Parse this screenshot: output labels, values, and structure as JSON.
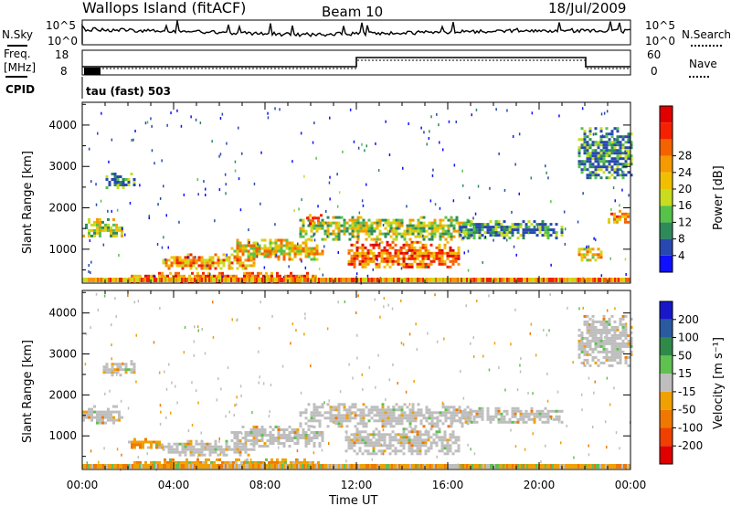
{
  "header": {
    "site": "Wallops Island (fitACF)",
    "beam": "Beam 10",
    "date": "18/Jul/2009"
  },
  "strips": {
    "nsky": {
      "label": "N.Sky",
      "left_ticks": [
        "10^5",
        "10^0"
      ],
      "right_ticks": [
        "10^5",
        "10^0"
      ],
      "right_label": "N.Search"
    },
    "freq": {
      "label_line1": "Freq.",
      "label_line2": "[MHz]",
      "left_ticks": [
        "18",
        "8"
      ],
      "right_ticks": [
        "60",
        "0"
      ],
      "right_label": "Nave"
    },
    "cpid": {
      "label": "CPID",
      "value_text": "tau (fast) 503"
    }
  },
  "chart_data": [
    {
      "type": "heatmap",
      "panel": "power",
      "ylabel": "Slant Range [km]",
      "x_ticks": [
        "00:00",
        "04:00",
        "08:00",
        "12:00",
        "16:00",
        "20:00",
        "00:00"
      ],
      "xlim_hours": [
        0,
        24
      ],
      "y_ticks": [
        1000,
        2000,
        3000,
        4000
      ],
      "ylim": [
        180,
        4550
      ],
      "colorbar": {
        "label": "Power [dB]",
        "ticks": [
          "4",
          "8",
          "12",
          "16",
          "20",
          "24",
          "28"
        ],
        "colors": [
          "#1010ff",
          "#2848b0",
          "#2f8a5a",
          "#56c24a",
          "#c8dc20",
          "#f0c000",
          "#f59a00",
          "#f56200",
          "#f52000",
          "#e00000"
        ]
      },
      "regions": [
        {
          "t": [
            0.0,
            1.7
          ],
          "r": [
            1300,
            1750
          ],
          "level": 5
        },
        {
          "t": [
            0.9,
            2.3
          ],
          "r": [
            2500,
            2850
          ],
          "level": 3
        },
        {
          "t": [
            2.0,
            10.5
          ],
          "r": [
            250,
            450
          ],
          "level": 8
        },
        {
          "t": [
            3.5,
            7.5
          ],
          "r": [
            550,
            900
          ],
          "level": 7
        },
        {
          "t": [
            6.5,
            10.5
          ],
          "r": [
            750,
            1250
          ],
          "level": 6
        },
        {
          "t": [
            9.5,
            17.0
          ],
          "r": [
            1250,
            1800
          ],
          "level": 5
        },
        {
          "t": [
            11.5,
            16.5
          ],
          "r": [
            550,
            1200
          ],
          "level": 8
        },
        {
          "t": [
            9.8,
            10.6
          ],
          "r": [
            1600,
            1850
          ],
          "level": 8
        },
        {
          "t": [
            16.5,
            21.0
          ],
          "r": [
            1300,
            1700
          ],
          "level": 3
        },
        {
          "t": [
            21.7,
            22.7
          ],
          "r": [
            750,
            1100
          ],
          "level": 6
        },
        {
          "t": [
            21.7,
            24.0
          ],
          "r": [
            2700,
            3950
          ],
          "level": 3
        },
        {
          "t": [
            23.0,
            24.0
          ],
          "r": [
            1650,
            1950
          ],
          "level": 7
        }
      ]
    },
    {
      "type": "heatmap",
      "panel": "velocity",
      "ylabel": "Slant Range [km]",
      "xlabel": "Time UT",
      "x_ticks": [
        "00:00",
        "04:00",
        "08:00",
        "12:00",
        "16:00",
        "20:00",
        "00:00"
      ],
      "xlim_hours": [
        0,
        24
      ],
      "y_ticks": [
        1000,
        2000,
        3000,
        4000
      ],
      "ylim": [
        180,
        4550
      ],
      "colorbar": {
        "label": "Velocity [m s⁻¹]",
        "ticks": [
          "200",
          "100",
          "50",
          "15",
          "-15",
          "-50",
          "-100",
          "-200"
        ],
        "colors": [
          "#1818c8",
          "#2a5aa0",
          "#2f8a4a",
          "#60c050",
          "#bebebe",
          "#f0a000",
          "#f07800",
          "#f04000",
          "#e00000"
        ]
      },
      "regions": [
        {
          "t": [
            0.0,
            1.7
          ],
          "r": [
            1300,
            1750
          ],
          "level": "gray"
        },
        {
          "t": [
            0.9,
            2.3
          ],
          "r": [
            2500,
            2850
          ],
          "level": "gray"
        },
        {
          "t": [
            2.0,
            10.5
          ],
          "r": [
            250,
            450
          ],
          "level": "orange"
        },
        {
          "t": [
            3.5,
            7.5
          ],
          "r": [
            550,
            900
          ],
          "level": "gray"
        },
        {
          "t": [
            6.5,
            10.5
          ],
          "r": [
            750,
            1250
          ],
          "level": "gray"
        },
        {
          "t": [
            9.5,
            17.0
          ],
          "r": [
            1250,
            1800
          ],
          "level": "gray"
        },
        {
          "t": [
            11.5,
            16.5
          ],
          "r": [
            550,
            1200
          ],
          "level": "gray"
        },
        {
          "t": [
            16.5,
            21.0
          ],
          "r": [
            1300,
            1700
          ],
          "level": "gray"
        },
        {
          "t": [
            21.7,
            24.0
          ],
          "r": [
            2700,
            3950
          ],
          "level": "gray"
        },
        {
          "t": [
            2.0,
            3.5
          ],
          "r": [
            700,
            950
          ],
          "level": "orange"
        }
      ]
    }
  ]
}
